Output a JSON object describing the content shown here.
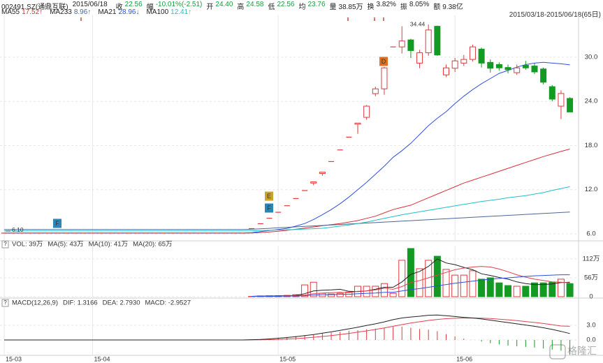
{
  "header": {
    "code": "002491.SZ(通鼎互联)",
    "date": "2015/06/18",
    "range": "2015/03/18-2015/06/18(65日)",
    "help_icon": "?",
    "watermark": "格隆汇",
    "fields": [
      {
        "label": "收",
        "value": "22.56",
        "color": "#169c3c"
      },
      {
        "label": "幅",
        "value": "-10.01%(-2.51)",
        "color": "#169c3c"
      },
      {
        "label": "开",
        "value": "24.40",
        "color": "#169c3c"
      },
      {
        "label": "高",
        "value": "24.58",
        "color": "#169c3c"
      },
      {
        "label": "低",
        "value": "22.56",
        "color": "#169c3c"
      },
      {
        "label": "均",
        "value": "23.76",
        "color": "#169c3c"
      },
      {
        "label": "量",
        "value": "38.85万",
        "color": "#222222"
      },
      {
        "label": "换",
        "value": "3.82%",
        "color": "#222222"
      },
      {
        "label": "振",
        "value": "8.05%",
        "color": "#222222"
      },
      {
        "label": "额",
        "value": "9.38亿",
        "color": "#222222"
      }
    ]
  },
  "chart_data": [
    {
      "type": "candlestick",
      "up_color": "#e03a3e",
      "down_color": "#129a22",
      "ylim": [
        5.05,
        35.4
      ],
      "yticks": [
        {
          "value": 6,
          "label": "6.0"
        },
        {
          "value": 12,
          "label": "12.0"
        },
        {
          "value": 18,
          "label": "18.0"
        },
        {
          "value": 24,
          "label": "24.0"
        },
        {
          "value": 30,
          "label": "30.0"
        }
      ],
      "xticks": [
        {
          "value": 0,
          "label": "15-03"
        },
        {
          "value": 10,
          "label": "15-04"
        },
        {
          "value": 31,
          "label": "15-05"
        },
        {
          "value": 51,
          "label": "15-06"
        }
      ],
      "grid": true,
      "high_label": "34.44",
      "low_label": "6.10",
      "markers": [
        {
          "label": "F",
          "color": "#2a86b8"
        },
        {
          "label": "E",
          "color": "#c9a230"
        },
        {
          "label": "F",
          "color": "#2a86b8"
        },
        {
          "label": "D",
          "color": "#e0701e"
        }
      ],
      "open": [
        6.1,
        6.1,
        6.1,
        6.1,
        6.1,
        6.1,
        6.1,
        6.1,
        6.1,
        6.1,
        6.1,
        6.1,
        6.1,
        6.1,
        6.1,
        6.1,
        6.1,
        6.1,
        6.1,
        6.1,
        6.1,
        6.1,
        6.1,
        6.1,
        6.1,
        6.1,
        6.1,
        6.1,
        6.71,
        7.38,
        8.12,
        8.93,
        9.82,
        10.8,
        11.88,
        12.9,
        14.2,
        15.82,
        17.4,
        19.14,
        20.9,
        21.83,
        25.05,
        25.7,
        31.4,
        31.4,
        32.35,
        29.2,
        30.6,
        34.2,
        27.6,
        28.5,
        29.2,
        29.7,
        31.1,
        29.3,
        29.0,
        28.6,
        27.9,
        28.9,
        28.8,
        28.4,
        26.0,
        23.35,
        24.4
      ],
      "high": [
        6.1,
        6.1,
        6.1,
        6.1,
        6.1,
        6.1,
        6.1,
        6.1,
        6.1,
        6.1,
        6.1,
        6.1,
        6.1,
        6.1,
        6.1,
        6.1,
        6.1,
        6.1,
        6.1,
        6.1,
        6.1,
        6.1,
        6.1,
        6.1,
        6.1,
        6.1,
        6.1,
        6.1,
        6.71,
        7.38,
        8.12,
        8.93,
        9.82,
        10.8,
        11.88,
        13.07,
        14.38,
        15.82,
        17.4,
        19.14,
        21.05,
        23.5,
        26.0,
        28.7,
        31.4,
        34.2,
        32.5,
        31.0,
        34.44,
        34.3,
        29.0,
        29.9,
        30.3,
        31.7,
        31.3,
        29.7,
        29.3,
        29.0,
        29.0,
        29.5,
        29.2,
        28.6,
        26.2,
        25.5,
        24.58
      ],
      "low": [
        6.1,
        6.1,
        6.1,
        6.1,
        6.1,
        6.1,
        6.1,
        6.1,
        6.1,
        6.1,
        6.1,
        6.1,
        6.1,
        6.1,
        6.1,
        6.1,
        6.1,
        6.1,
        6.1,
        6.1,
        6.1,
        6.1,
        6.1,
        6.1,
        6.1,
        6.1,
        6.1,
        6.1,
        6.71,
        7.38,
        8.12,
        8.93,
        9.82,
        10.8,
        11.88,
        12.6,
        13.9,
        15.82,
        17.4,
        19.14,
        19.6,
        21.5,
        24.7,
        24.9,
        31.4,
        30.5,
        29.9,
        28.5,
        30.2,
        30.2,
        27.3,
        28.0,
        28.8,
        29.4,
        28.6,
        27.9,
        28.2,
        27.8,
        27.6,
        28.3,
        27.7,
        26.3,
        24.0,
        21.6,
        22.56
      ],
      "close": [
        6.1,
        6.1,
        6.1,
        6.1,
        6.1,
        6.1,
        6.1,
        6.1,
        6.1,
        6.1,
        6.1,
        6.1,
        6.1,
        6.1,
        6.1,
        6.1,
        6.1,
        6.1,
        6.1,
        6.1,
        6.1,
        6.1,
        6.1,
        6.1,
        6.1,
        6.1,
        6.1,
        6.1,
        6.71,
        7.38,
        8.12,
        8.93,
        9.82,
        10.8,
        11.88,
        13.07,
        14.38,
        15.82,
        17.4,
        19.14,
        21.05,
        23.35,
        25.7,
        28.55,
        31.4,
        32.2,
        30.9,
        30.6,
        33.7,
        30.3,
        28.55,
        29.5,
        29.7,
        31.4,
        29.2,
        28.5,
        28.55,
        28.3,
        28.55,
        28.55,
        28.0,
        26.6,
        24.3,
        25.07,
        22.56
      ],
      "lines": [
        {
          "name": "MA55",
          "legend_text": "17.52↑",
          "color": "#d8303a",
          "values": [
            6.1,
            6.1,
            6.1,
            6.1,
            6.1,
            6.1,
            6.1,
            6.1,
            6.1,
            6.1,
            6.1,
            6.1,
            6.1,
            6.1,
            6.1,
            6.1,
            6.1,
            6.1,
            6.1,
            6.1,
            6.1,
            6.1,
            6.1,
            6.1,
            6.1,
            6.1,
            6.1,
            6.1,
            6.12,
            6.18,
            6.25,
            6.35,
            6.48,
            6.62,
            6.78,
            6.95,
            7.1,
            7.25,
            7.4,
            7.6,
            7.8,
            8.1,
            8.4,
            8.85,
            9.3,
            9.6,
            9.9,
            10.4,
            10.9,
            11.4,
            11.9,
            12.4,
            12.9,
            13.3,
            13.7,
            14.1,
            14.5,
            14.9,
            15.3,
            15.7,
            16.1,
            16.5,
            16.85,
            17.2,
            17.52
          ]
        },
        {
          "name": "MA233",
          "legend_text": "8.96↑",
          "color": "#4e6690",
          "values": [
            6.6,
            6.6,
            6.6,
            6.6,
            6.6,
            6.6,
            6.6,
            6.6,
            6.6,
            6.6,
            6.6,
            6.6,
            6.6,
            6.6,
            6.6,
            6.6,
            6.6,
            6.6,
            6.6,
            6.6,
            6.6,
            6.6,
            6.6,
            6.6,
            6.6,
            6.6,
            6.6,
            6.6,
            6.62,
            6.69,
            6.75,
            6.82,
            6.88,
            6.95,
            7.01,
            7.08,
            7.14,
            7.21,
            7.27,
            7.34,
            7.4,
            7.47,
            7.53,
            7.6,
            7.66,
            7.73,
            7.79,
            7.86,
            7.92,
            7.99,
            8.05,
            8.12,
            8.18,
            8.25,
            8.31,
            8.38,
            8.44,
            8.51,
            8.57,
            8.64,
            8.7,
            8.77,
            8.83,
            8.9,
            8.96
          ]
        },
        {
          "name": "MA21",
          "legend_text": "28.96↓",
          "color": "#3050e0",
          "values": [
            6.1,
            6.1,
            6.1,
            6.1,
            6.1,
            6.1,
            6.1,
            6.1,
            6.1,
            6.1,
            6.1,
            6.1,
            6.1,
            6.1,
            6.1,
            6.1,
            6.1,
            6.1,
            6.1,
            6.1,
            6.1,
            6.1,
            6.1,
            6.1,
            6.1,
            6.1,
            6.1,
            6.1,
            6.15,
            6.3,
            6.45,
            6.6,
            6.75,
            7.05,
            7.4,
            7.95,
            8.6,
            9.3,
            10.1,
            11.0,
            12.0,
            13.0,
            14.1,
            15.2,
            16.4,
            17.3,
            18.3,
            19.5,
            20.7,
            21.7,
            22.6,
            23.7,
            24.7,
            25.6,
            26.4,
            27.1,
            27.8,
            28.2,
            28.65,
            29.0,
            29.2,
            29.3,
            29.2,
            29.1,
            28.96
          ]
        },
        {
          "name": "MA100",
          "legend_text": "12.41↑",
          "color": "#20bfc8",
          "values": [
            6.4,
            6.4,
            6.4,
            6.4,
            6.4,
            6.4,
            6.4,
            6.4,
            6.4,
            6.4,
            6.4,
            6.4,
            6.4,
            6.4,
            6.4,
            6.4,
            6.4,
            6.4,
            6.4,
            6.4,
            6.4,
            6.4,
            6.4,
            6.4,
            6.4,
            6.4,
            6.4,
            6.4,
            6.42,
            6.45,
            6.48,
            6.52,
            6.56,
            6.6,
            6.65,
            6.7,
            6.76,
            6.9,
            7.05,
            7.2,
            7.4,
            7.6,
            7.85,
            8.1,
            8.35,
            8.6,
            8.8,
            9.0,
            9.2,
            9.4,
            9.6,
            9.8,
            10.0,
            10.2,
            10.4,
            10.55,
            10.7,
            10.9,
            11.05,
            11.2,
            11.4,
            11.6,
            11.9,
            12.15,
            12.41
          ]
        }
      ]
    },
    {
      "type": "volume",
      "legend": "VOL: 39万",
      "ylim": [
        0,
        145
      ],
      "yticks": [
        0,
        {
          "value": 56,
          "label": "56万"
        },
        {
          "value": 112,
          "label": "112万"
        }
      ],
      "values": [
        null,
        null,
        null,
        null,
        null,
        null,
        null,
        null,
        null,
        null,
        null,
        null,
        null,
        null,
        null,
        null,
        null,
        null,
        null,
        null,
        null,
        null,
        null,
        null,
        null,
        null,
        null,
        null,
        1,
        2,
        3,
        3,
        4,
        6,
        35,
        43,
        10,
        8,
        10,
        14,
        31,
        31,
        31,
        39,
        10,
        108,
        143,
        83,
        108,
        120,
        81,
        64,
        64,
        77,
        52,
        56,
        41,
        33,
        31,
        31,
        41,
        41,
        43,
        52,
        38.85
      ],
      "lines": [
        {
          "legend": "MA(5): 43万",
          "color": "#222222",
          "values": [
            null,
            null,
            null,
            null,
            null,
            null,
            null,
            null,
            null,
            null,
            null,
            null,
            null,
            null,
            null,
            null,
            null,
            null,
            null,
            null,
            null,
            null,
            null,
            null,
            null,
            null,
            null,
            null,
            1,
            2,
            2,
            3,
            3,
            4,
            9,
            17,
            19,
            20,
            22,
            16,
            15,
            17,
            22,
            28,
            28,
            44,
            66,
            75,
            90,
            112,
            100,
            95,
            87,
            80,
            68,
            63,
            57,
            52,
            44,
            39,
            36,
            36,
            38,
            42,
            43
          ]
        },
        {
          "legend": "MA(10): 41万",
          "color": "#e04050",
          "values": [
            null,
            null,
            null,
            null,
            null,
            null,
            null,
            null,
            null,
            null,
            null,
            null,
            null,
            null,
            null,
            null,
            null,
            null,
            null,
            null,
            null,
            null,
            null,
            null,
            null,
            null,
            null,
            null,
            1,
            1,
            2,
            2,
            3,
            3,
            5,
            9,
            11,
            12,
            13,
            12,
            16,
            17,
            20,
            25,
            22,
            30,
            42,
            48,
            56,
            64,
            72,
            80,
            85,
            88,
            90,
            88,
            82,
            74,
            65,
            58,
            52,
            48,
            44,
            43,
            41
          ]
        },
        {
          "legend": "MA(20): 65万",
          "color": "#3050e0",
          "values": [
            null,
            null,
            null,
            null,
            null,
            null,
            null,
            null,
            null,
            null,
            null,
            null,
            null,
            null,
            null,
            null,
            null,
            null,
            null,
            null,
            null,
            null,
            null,
            null,
            null,
            null,
            null,
            null,
            1,
            1,
            1,
            1,
            2,
            2,
            3,
            5,
            6,
            6,
            7,
            7,
            9,
            10,
            11,
            13,
            13,
            17,
            21,
            24,
            28,
            32,
            36,
            40,
            43,
            46,
            49,
            52,
            54,
            56,
            58,
            60,
            62,
            63,
            64,
            65,
            65
          ]
        }
      ]
    },
    {
      "type": "macd",
      "title": "MACD(12,26,9)",
      "ylim": [
        -3.0,
        8.14
      ],
      "yticks": [
        {
          "value": 0,
          "label": "0.0"
        },
        {
          "value": 3,
          "label": "3.0"
        }
      ],
      "dif": {
        "legend": "DIF: 1.3166",
        "color": "#222222",
        "values": [
          0,
          0,
          0,
          0,
          0,
          0,
          0,
          0,
          0,
          0,
          0,
          0,
          0,
          0,
          0,
          0,
          0,
          0,
          0,
          0,
          0,
          0,
          0,
          0,
          0,
          0,
          0,
          0,
          0.05,
          0.12,
          0.22,
          0.35,
          0.5,
          0.68,
          0.9,
          1.12,
          1.38,
          1.65,
          1.95,
          2.28,
          2.6,
          2.95,
          3.3,
          3.7,
          4.15,
          4.5,
          4.7,
          4.85,
          5.05,
          5.1,
          4.95,
          4.8,
          4.62,
          4.5,
          4.3,
          4.05,
          3.8,
          3.55,
          3.3,
          3.05,
          2.8,
          2.5,
          2.15,
          1.75,
          1.3166
        ]
      },
      "dea": {
        "legend": "DEA: 2.7930",
        "color": "#e04050",
        "values": [
          0,
          0,
          0,
          0,
          0,
          0,
          0,
          0,
          0,
          0,
          0,
          0,
          0,
          0,
          0,
          0,
          0,
          0,
          0,
          0,
          0,
          0,
          0,
          0,
          0,
          0,
          0,
          0,
          0.01,
          0.03,
          0.07,
          0.12,
          0.2,
          0.29,
          0.41,
          0.55,
          0.71,
          0.9,
          1.11,
          1.34,
          1.6,
          1.86,
          2.15,
          2.46,
          2.8,
          3.14,
          3.45,
          3.73,
          4.0,
          4.2,
          4.35,
          4.44,
          4.48,
          4.49,
          4.45,
          4.38,
          4.26,
          4.12,
          3.95,
          3.77,
          3.58,
          3.37,
          3.13,
          2.85,
          2.793
        ]
      },
      "hist": {
        "legend": "MACD: -2.9527",
        "legend_color": "#169c3c",
        "up_color": "#e03a3e",
        "down_color": "#129a22",
        "values": [
          null,
          null,
          null,
          null,
          null,
          null,
          null,
          null,
          null,
          null,
          null,
          null,
          null,
          null,
          null,
          null,
          null,
          null,
          null,
          null,
          null,
          null,
          null,
          null,
          null,
          null,
          null,
          null,
          0.08,
          0.18,
          0.3,
          0.46,
          0.6,
          0.78,
          0.98,
          1.14,
          1.34,
          1.5,
          1.68,
          1.88,
          2.0,
          2.18,
          2.3,
          2.48,
          2.7,
          2.72,
          2.5,
          2.24,
          2.1,
          1.8,
          1.2,
          0.72,
          0.28,
          0.02,
          -0.3,
          -0.66,
          -0.92,
          -1.14,
          -1.3,
          -1.44,
          -1.56,
          -1.74,
          -1.96,
          -2.2,
          -2.9527
        ]
      }
    }
  ]
}
